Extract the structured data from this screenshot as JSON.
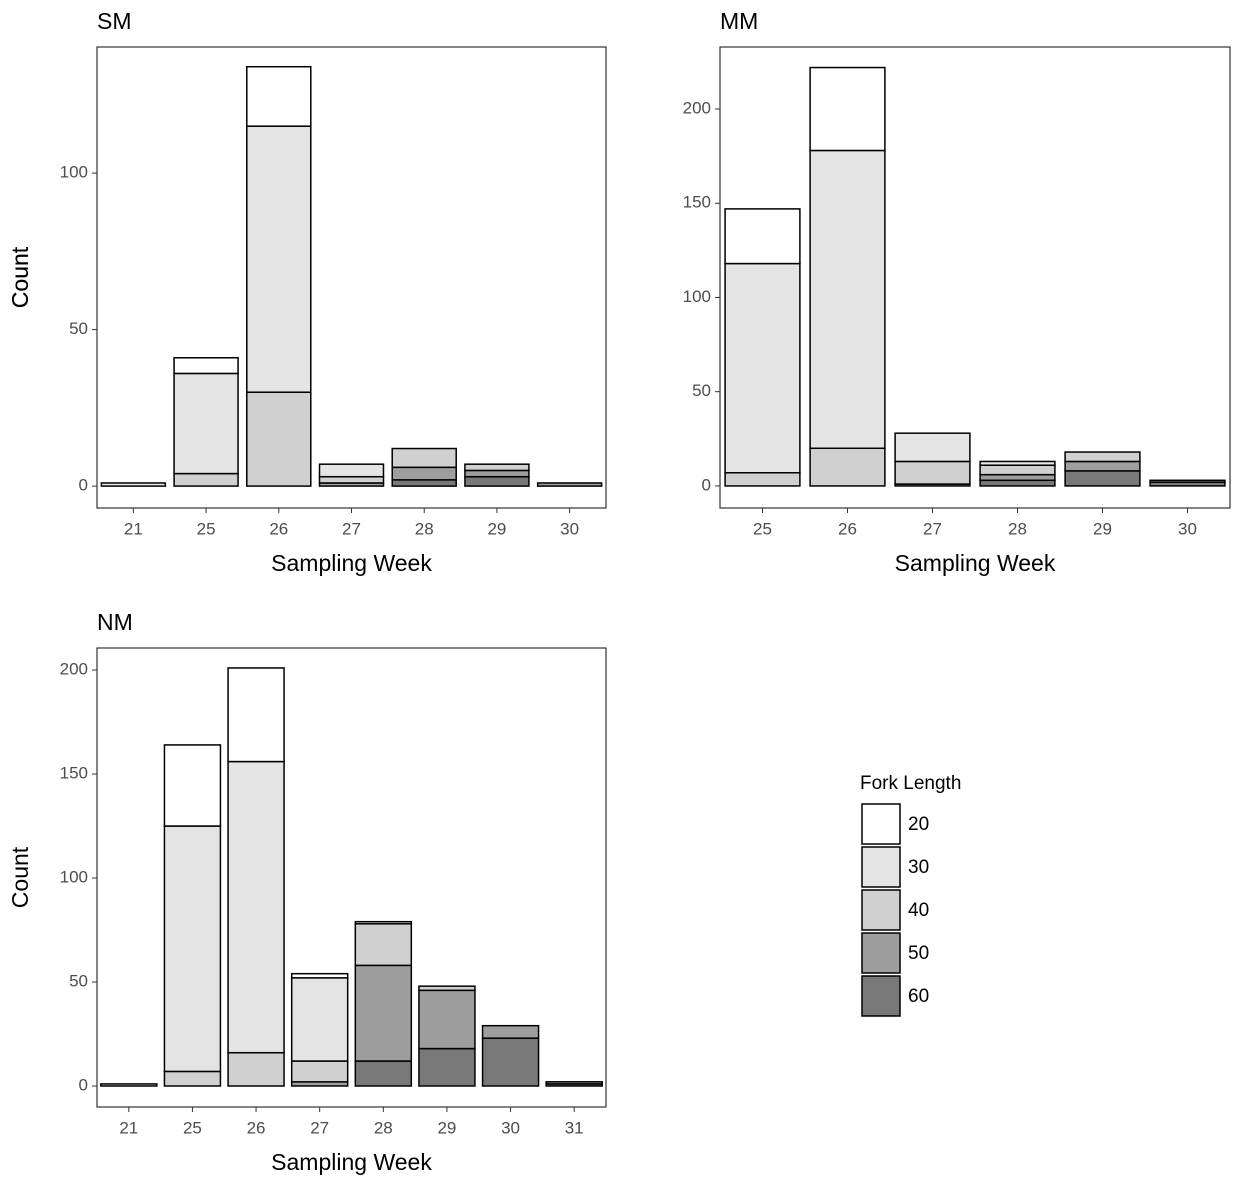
{
  "chart_data": [
    {
      "type": "bar",
      "stacked": true,
      "title": "SM",
      "xlabel": "Sampling Week",
      "ylabel": "Count",
      "categories": [
        "21",
        "25",
        "26",
        "27",
        "28",
        "29",
        "30"
      ],
      "series": [
        {
          "name": "60",
          "color": "#787878",
          "values": [
            0,
            0,
            0,
            0,
            2,
            3,
            0
          ]
        },
        {
          "name": "50",
          "color": "#9e9e9e",
          "values": [
            0,
            0,
            0,
            1,
            4,
            2,
            1
          ]
        },
        {
          "name": "40",
          "color": "#d0d0d0",
          "values": [
            0,
            4,
            30,
            2,
            6,
            2,
            0
          ]
        },
        {
          "name": "30",
          "color": "#e4e4e4",
          "values": [
            1,
            32,
            85,
            4,
            0,
            0,
            0
          ]
        },
        {
          "name": "20",
          "color": "#ffffff",
          "values": [
            0,
            5,
            19,
            0,
            0,
            0,
            0
          ]
        }
      ],
      "ylim": [
        -7,
        140.3
      ],
      "yticks": [
        0,
        50,
        100
      ]
    },
    {
      "type": "bar",
      "stacked": true,
      "title": "MM",
      "xlabel": "Sampling Week",
      "ylabel": "Count",
      "categories": [
        "25",
        "26",
        "27",
        "28",
        "29",
        "30"
      ],
      "series": [
        {
          "name": "60",
          "color": "#787878",
          "values": [
            0,
            0,
            0,
            3,
            8,
            2
          ]
        },
        {
          "name": "50",
          "color": "#9e9e9e",
          "values": [
            0,
            0,
            1,
            3,
            5,
            1
          ]
        },
        {
          "name": "40",
          "color": "#d0d0d0",
          "values": [
            7,
            20,
            12,
            5,
            5,
            0
          ]
        },
        {
          "name": "30",
          "color": "#e4e4e4",
          "values": [
            111,
            158,
            15,
            2,
            0,
            0
          ]
        },
        {
          "name": "20",
          "color": "#ffffff",
          "values": [
            29,
            44,
            0,
            0,
            0,
            0
          ]
        }
      ],
      "ylim": [
        -11.7,
        232.9
      ],
      "yticks": [
        0,
        50,
        100,
        150,
        200
      ]
    },
    {
      "type": "bar",
      "stacked": true,
      "title": "NM",
      "xlabel": "Sampling Week",
      "ylabel": "Count",
      "legend_title": "Fork Length",
      "categories": [
        "21",
        "25",
        "26",
        "27",
        "28",
        "29",
        "30",
        "31"
      ],
      "series": [
        {
          "name": "60",
          "color": "#787878",
          "values": [
            0,
            0,
            0,
            0,
            12,
            18,
            23,
            1
          ]
        },
        {
          "name": "50",
          "color": "#9e9e9e",
          "values": [
            0,
            0,
            0,
            2,
            46,
            28,
            6,
            1
          ]
        },
        {
          "name": "40",
          "color": "#d0d0d0",
          "values": [
            1,
            7,
            16,
            10,
            20,
            2,
            0,
            0
          ]
        },
        {
          "name": "30",
          "color": "#e4e4e4",
          "values": [
            0,
            118,
            140,
            40,
            1,
            0,
            0,
            0
          ]
        },
        {
          "name": "20",
          "color": "#ffffff",
          "values": [
            0,
            39,
            45,
            2,
            0,
            0,
            0,
            0
          ]
        }
      ],
      "ylim": [
        -10.1,
        210.6
      ],
      "yticks": [
        0,
        50,
        100,
        150,
        200
      ]
    }
  ]
}
